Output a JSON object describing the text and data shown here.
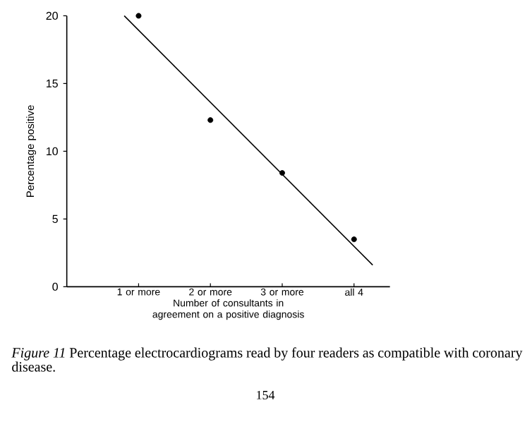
{
  "chart_data": {
    "type": "scatter",
    "xlabel": "Number of consultants in agreement on a positive diagnosis",
    "ylabel": "Percentage positive",
    "x": [
      1,
      2,
      3,
      4
    ],
    "xlim": [
      0,
      4.5
    ],
    "xticks": [
      {
        "value": 1,
        "label": "1 or more"
      },
      {
        "value": 2,
        "label": "2 or more"
      },
      {
        "value": 3,
        "label": "3 or more"
      },
      {
        "value": 4,
        "label": "all 4"
      }
    ],
    "ylim": [
      0,
      20
    ],
    "yticks": [
      0,
      5,
      10,
      15,
      20
    ],
    "series": [
      {
        "values": [
          20,
          12.3,
          8.4,
          3.5
        ],
        "color": "#000000",
        "marker": "circle"
      },
      {
        "type": "line",
        "x": [
          0.8,
          4.26
        ],
        "values": [
          20,
          1.6
        ],
        "color": "#000000",
        "marker": "none"
      }
    ],
    "annotations": [
      "*Figure 11* Percentage electrocardiograms read by four readers as compatible with coronary disease.",
      "154"
    ]
  }
}
